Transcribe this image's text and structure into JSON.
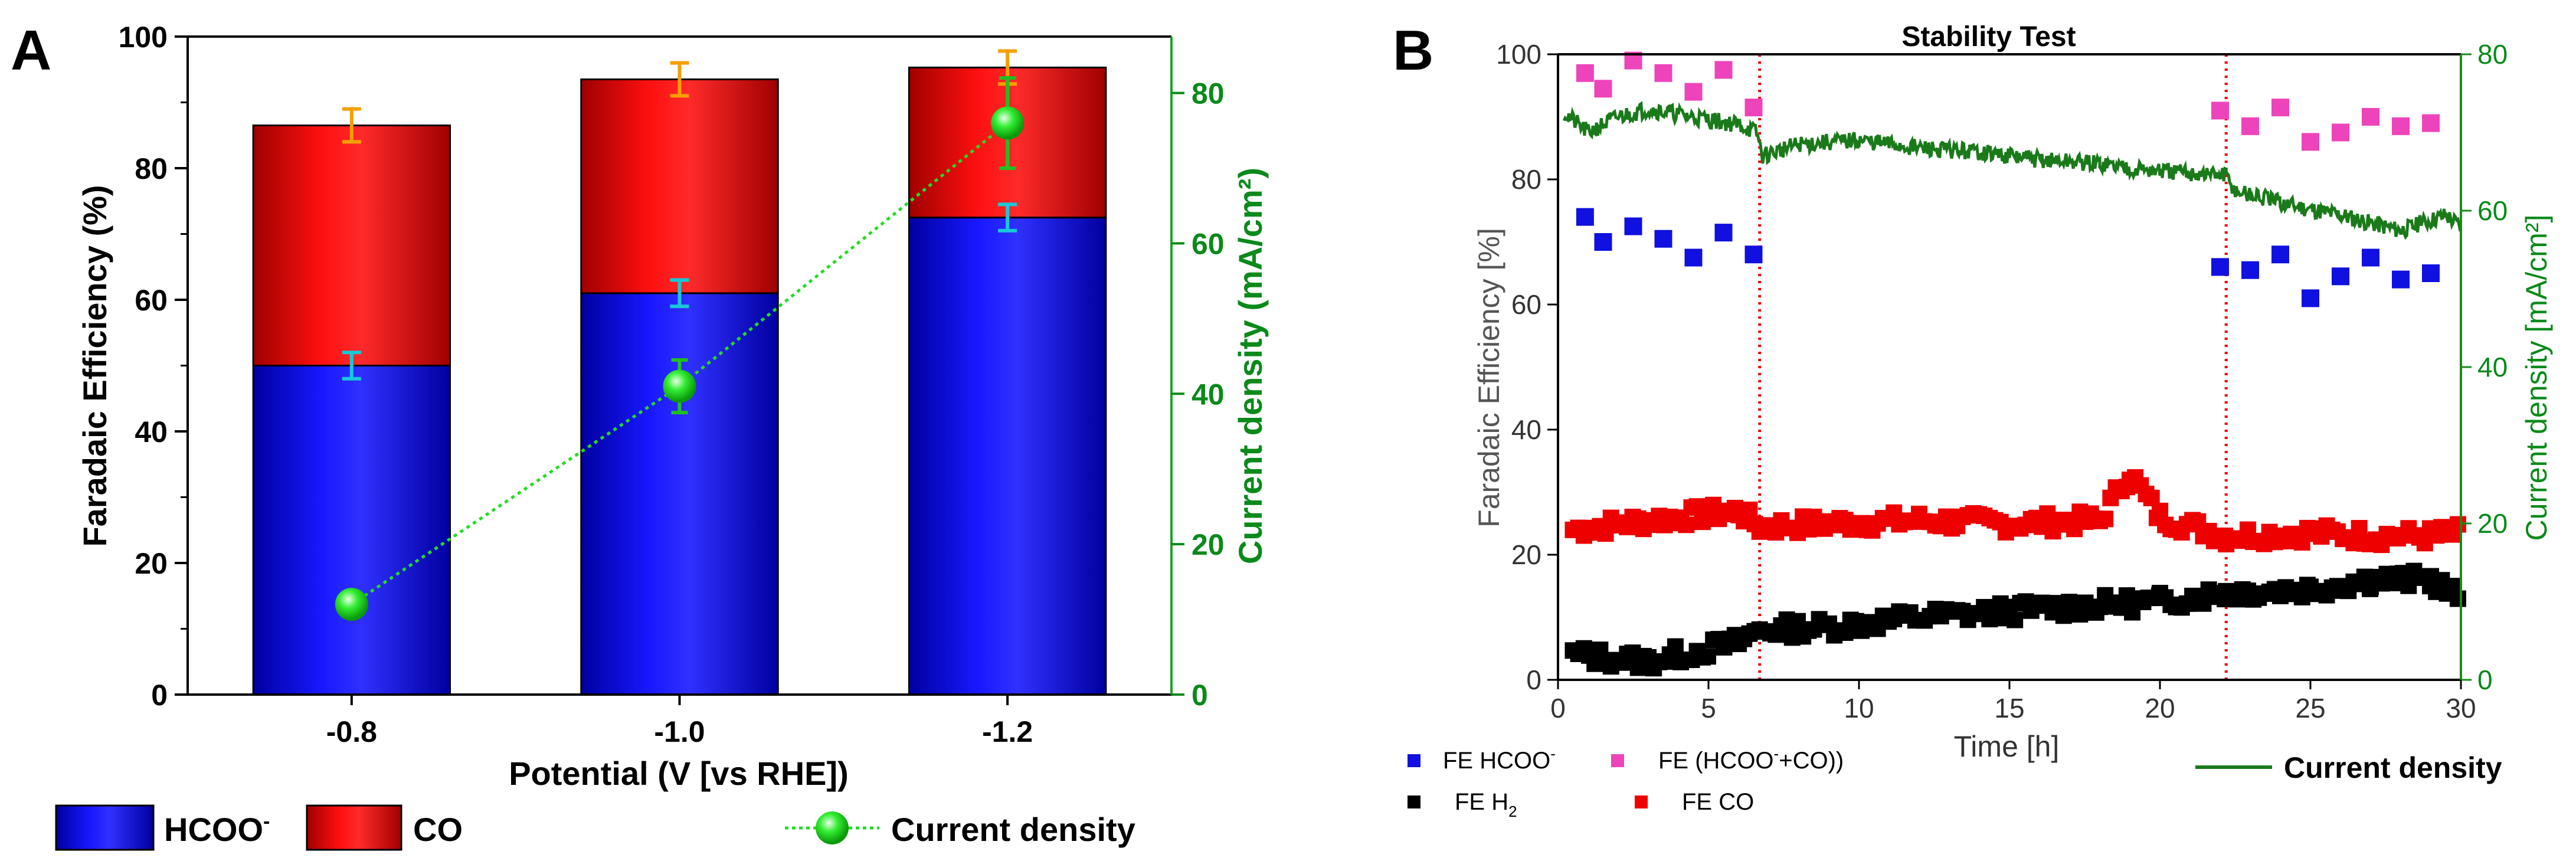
{
  "colors": {
    "hcoo": "#1010e0",
    "co": "#ee0000",
    "cd_marker": "#22dd22",
    "cd_axis": "#0a8a1a",
    "err_top": "#f5a000",
    "err_mid": "#18c8d8",
    "fe_total": "#ee44bb",
    "fe_h2": "#000000",
    "cd_line": "#1a7a1a",
    "dashed_red": "#ee0000"
  },
  "chart_data": [
    {
      "panel": "A",
      "type": "bar",
      "stacked": true,
      "xlabel": "Potential (V [vs RHE])",
      "ylabel": "Faradaic Efficiency (%)",
      "y2label": "Current density (mA/cm²)",
      "ylim": [
        0,
        100
      ],
      "y2lim": [
        0,
        87.5
      ],
      "yticks": [
        "0",
        "20",
        "40",
        "60",
        "80",
        "100"
      ],
      "y2ticks": [
        "0",
        "20",
        "40",
        "60",
        "80"
      ],
      "categories": [
        "-0.8",
        "-1.0",
        "-1.2"
      ],
      "series": [
        {
          "name": "HCOO⁻",
          "values": [
            50,
            61,
            72.5
          ],
          "errors": [
            2,
            2,
            2
          ]
        },
        {
          "name": "CO",
          "values": [
            36.5,
            32.5,
            22.8
          ],
          "errors": [
            2.5,
            2.5,
            2.5
          ]
        }
      ],
      "current_density": {
        "name": "Current density",
        "values": [
          12,
          41,
          76
        ],
        "errors": [
          1.5,
          3.5,
          6
        ]
      },
      "legend": [
        {
          "label": "HCOO",
          "sup": "-"
        },
        {
          "label": "CO",
          "sup": ""
        },
        {
          "label": "Current density",
          "sup": ""
        }
      ]
    },
    {
      "panel": "B",
      "type": "scatter",
      "title": "Stability Test",
      "xlabel": "Time [h]",
      "ylabel": "Faradaic Efficiency [%]",
      "y2label": "Current density [mA/cm²]",
      "xlim": [
        0,
        30
      ],
      "ylim": [
        0,
        100
      ],
      "y2lim": [
        0,
        80
      ],
      "xticks": [
        "0",
        "5",
        "10",
        "15",
        "20",
        "25",
        "30"
      ],
      "yticks": [
        "0",
        "20",
        "40",
        "60",
        "80",
        "100"
      ],
      "y2ticks": [
        "0",
        "20",
        "40",
        "60",
        "80"
      ],
      "vlines": [
        6.7,
        22.2
      ],
      "series": [
        {
          "name": "FE HCOO⁻",
          "x": [
            0.9,
            1.5,
            2.5,
            3.5,
            4.5,
            5.5,
            6.5,
            22.0,
            23.0,
            24.0,
            25.0,
            26.0,
            27.0,
            28.0,
            29.0
          ],
          "y": [
            74,
            70,
            72.5,
            70.5,
            67.5,
            71.5,
            68,
            66,
            65.5,
            68,
            61,
            64.5,
            67.5,
            64,
            65
          ]
        },
        {
          "name": "FE (HCOO⁻+CO))",
          "x": [
            0.9,
            1.5,
            2.5,
            3.5,
            4.5,
            5.5,
            6.5,
            22.0,
            23.0,
            24.0,
            25.0,
            26.0,
            27.0,
            28.0,
            29.0
          ],
          "y": [
            97,
            94.5,
            99,
            97,
            94,
            97.5,
            91.5,
            91,
            88.5,
            91.5,
            86,
            87.5,
            90,
            88.5,
            89
          ]
        },
        {
          "name": "FE H₂",
          "x": [
            0.5,
            3,
            6,
            6.7,
            9,
            12,
            15,
            18,
            20,
            22.2,
            25,
            27,
            29,
            30
          ],
          "y": [
            4,
            3,
            6,
            8,
            8.5,
            10,
            11,
            12,
            12.5,
            14,
            14.5,
            16,
            16,
            13
          ]
        },
        {
          "name": "FE CO",
          "x": [
            0.5,
            3,
            6,
            6.7,
            9,
            12,
            15,
            18,
            19,
            20,
            22.2,
            25,
            27,
            29,
            30
          ],
          "y": [
            24,
            25.5,
            27,
            24.5,
            25,
            25.5,
            25,
            25.5,
            33,
            26,
            23,
            23.5,
            23,
            23,
            23.5
          ]
        },
        {
          "name": "Current density",
          "x": [
            0.2,
            1,
            2,
            3,
            4.5,
            6,
            6.6,
            6.8,
            8,
            10,
            12,
            14,
            16,
            18,
            20,
            22.2,
            22.5,
            24,
            26,
            28,
            29.5,
            30
          ],
          "y": [
            72.5,
            70,
            72,
            73,
            72,
            71,
            70,
            67,
            68.5,
            69,
            68,
            67.5,
            66.5,
            66,
            65,
            64.5,
            62.5,
            61,
            59.5,
            57.5,
            59.5,
            58
          ]
        }
      ],
      "legend": [
        {
          "label": "FE HCOO",
          "sup": "-",
          "suffix": ""
        },
        {
          "label": "FE (HCOO",
          "sup": "-",
          "suffix": "+CO))"
        },
        {
          "label": "FE H",
          "sub": "2"
        },
        {
          "label": "FE CO"
        },
        {
          "label": "Current density"
        }
      ]
    }
  ]
}
